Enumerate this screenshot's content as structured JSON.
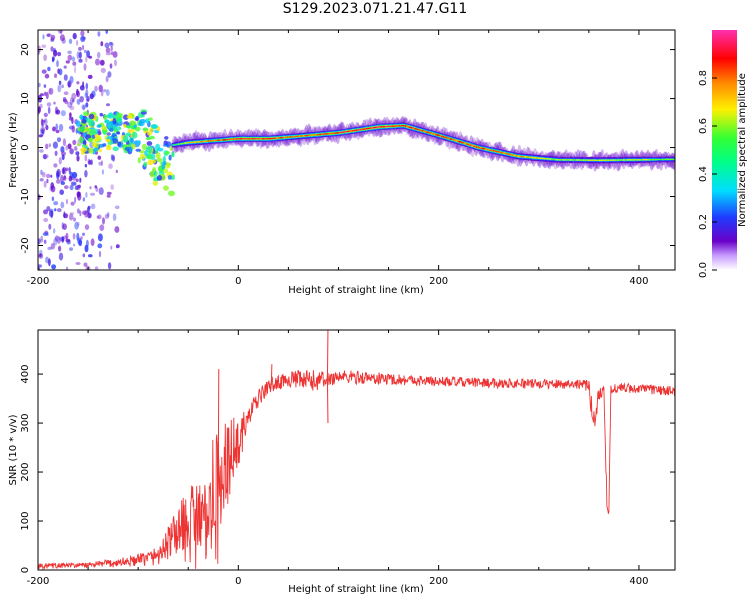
{
  "page": {
    "title": "S129.2023.071.21.47.G11"
  },
  "chart_data": [
    {
      "type": "heatmap",
      "title": "",
      "xlabel": "Height of straight line (km)",
      "ylabel": "Frequency (Hz)",
      "xlim": [
        -200,
        436
      ],
      "ylim": [
        -25,
        24
      ],
      "xticks": [
        -200,
        0,
        200,
        400
      ],
      "yticks": [
        -20,
        -10,
        0,
        10,
        20
      ],
      "colorbar": {
        "label": "Normalized spectral amplitude",
        "range": [
          0.0,
          1.0
        ],
        "ticks": [
          0.0,
          0.2,
          0.4,
          0.6,
          0.8
        ],
        "colormap": [
          "#ffffff",
          "#6a00c8",
          "#1e3cff",
          "#00ddff",
          "#33ff33",
          "#fff000",
          "#ff8800",
          "#ff0000",
          "#ff30b0"
        ]
      },
      "ridge": {
        "x": [
          -65,
          -50,
          0,
          30,
          60,
          100,
          140,
          165,
          200,
          240,
          280,
          320,
          360,
          400,
          436
        ],
        "frequency": [
          0.5,
          1.0,
          1.8,
          1.8,
          2.3,
          3.0,
          4.2,
          4.5,
          2.5,
          0.0,
          -1.8,
          -2.5,
          -2.6,
          -2.5,
          -2.4
        ],
        "peak_amplitude": [
          0.4,
          0.6,
          0.85,
          0.85,
          0.7,
          0.85,
          0.9,
          0.8,
          0.75,
          0.8,
          0.7,
          0.5,
          0.55,
          0.55,
          0.45
        ]
      },
      "noisy_region": {
        "x_range": [
          -200,
          -120
        ],
        "frequency_range": [
          -25,
          24
        ],
        "typical_amplitude": 0.15
      },
      "turbulent_region": {
        "x_range": [
          -160,
          -65
        ],
        "frequency_range": [
          -17,
          10
        ],
        "typical_amplitude": 0.35
      }
    },
    {
      "type": "line",
      "title": "",
      "xlabel": "Height of straight line (km)",
      "ylabel": "SNR (10 * v/v)",
      "xlim": [
        -200,
        436
      ],
      "ylim": [
        0,
        490
      ],
      "xticks": [
        -200,
        0,
        200,
        400
      ],
      "yticks": [
        0,
        100,
        200,
        300,
        400
      ],
      "series": [
        {
          "color": "#ee3333",
          "x": [
            -200,
            -150,
            -120,
            -100,
            -80,
            -60,
            -40,
            -20,
            -10,
            0,
            10,
            20,
            30,
            50,
            70,
            90,
            100,
            150,
            200,
            250,
            300,
            340,
            350,
            355,
            360,
            365,
            368,
            370,
            372,
            375,
            380,
            400,
            436
          ],
          "y": [
            8,
            10,
            15,
            20,
            30,
            80,
            130,
            180,
            230,
            260,
            310,
            350,
            375,
            390,
            385,
            390,
            395,
            390,
            385,
            382,
            380,
            380,
            375,
            300,
            360,
            370,
            140,
            120,
            370,
            370,
            372,
            370,
            365
          ],
          "noise": [
            6,
            5,
            10,
            12,
            20,
            50,
            80,
            110,
            90,
            50,
            25,
            18,
            15,
            15,
            25,
            15,
            15,
            12,
            10,
            10,
            10,
            10,
            12,
            40,
            15,
            10,
            20,
            10,
            10,
            10,
            10,
            10,
            10
          ]
        }
      ],
      "spikes": [
        {
          "x": 89,
          "y": 490
        },
        {
          "x": 89,
          "y": 300
        },
        {
          "x": 33,
          "y": 420
        },
        {
          "x": -20,
          "y": 410
        }
      ]
    }
  ]
}
